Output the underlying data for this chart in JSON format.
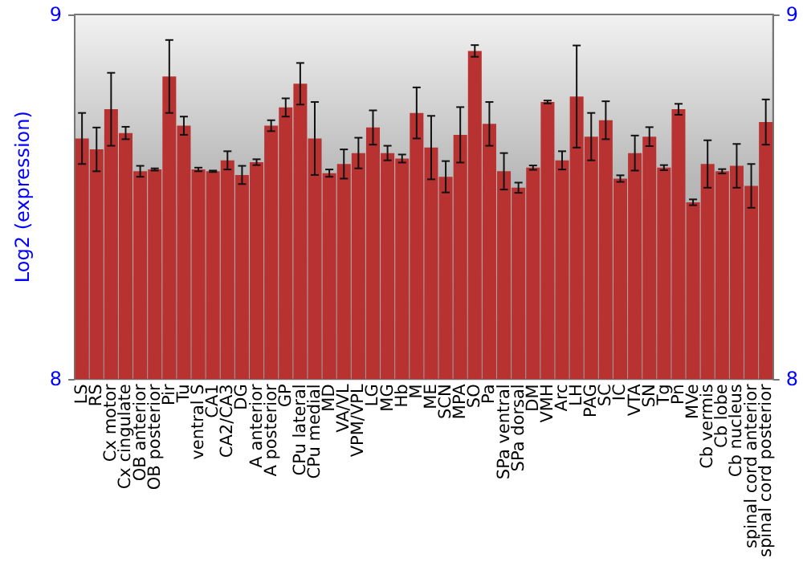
{
  "chart_data": {
    "type": "bar",
    "ylabel": "Log2 (expression)",
    "categories": [
      "LS",
      "RS",
      "Cx motor",
      "Cx cingulate",
      "OB anterior",
      "OB posterior",
      "Pir",
      "Tu",
      "ventral S",
      "CA1",
      "CA2/CA3",
      "DG",
      "A anterior",
      "A posterior",
      "GP",
      "CPu lateral",
      "CPu medial",
      "MD",
      "VA/VL",
      "VPM/VPL",
      "LG",
      "MG",
      "Hb",
      "M",
      "ME",
      "SCN",
      "MPA",
      "SO",
      "Pa",
      "SPa ventral",
      "SPa dorsal",
      "DM",
      "VMH",
      "Arc",
      "LH",
      "PAG",
      "SC",
      "IC",
      "VTA",
      "SN",
      "Tg",
      "Pn",
      "MVe",
      "Cb vermis",
      "Cb lobe",
      "Cb nucleus",
      "spinal cord anterior",
      "spinal cord posterior"
    ],
    "values": [
      8.66,
      8.63,
      8.74,
      8.675,
      8.57,
      8.575,
      8.83,
      8.695,
      8.575,
      8.57,
      8.6,
      8.56,
      8.595,
      8.695,
      8.745,
      8.81,
      8.66,
      8.565,
      8.59,
      8.62,
      8.69,
      8.62,
      8.605,
      8.73,
      8.635,
      8.555,
      8.67,
      8.9,
      8.7,
      8.57,
      8.525,
      8.58,
      8.76,
      8.6,
      8.775,
      8.665,
      8.71,
      8.55,
      8.62,
      8.665,
      8.58,
      8.74,
      8.485,
      8.59,
      8.57,
      8.585,
      8.53,
      8.705
    ],
    "errors": [
      0.07,
      0.06,
      0.1,
      0.017,
      0.015,
      0.003,
      0.1,
      0.025,
      0.005,
      0.002,
      0.025,
      0.025,
      0.008,
      0.015,
      0.025,
      0.057,
      0.1,
      0.01,
      0.04,
      0.042,
      0.047,
      0.02,
      0.011,
      0.07,
      0.087,
      0.043,
      0.076,
      0.016,
      0.06,
      0.05,
      0.014,
      0.006,
      0.004,
      0.025,
      0.14,
      0.065,
      0.052,
      0.009,
      0.048,
      0.026,
      0.007,
      0.015,
      0.008,
      0.065,
      0.006,
      0.06,
      0.06,
      0.062
    ],
    "color": "#b83232",
    "ylim": [
      8,
      9
    ],
    "yticks": [
      8,
      9
    ],
    "y2lim": [
      8,
      9
    ],
    "y2ticks": [
      8,
      9
    ],
    "grid": false
  }
}
